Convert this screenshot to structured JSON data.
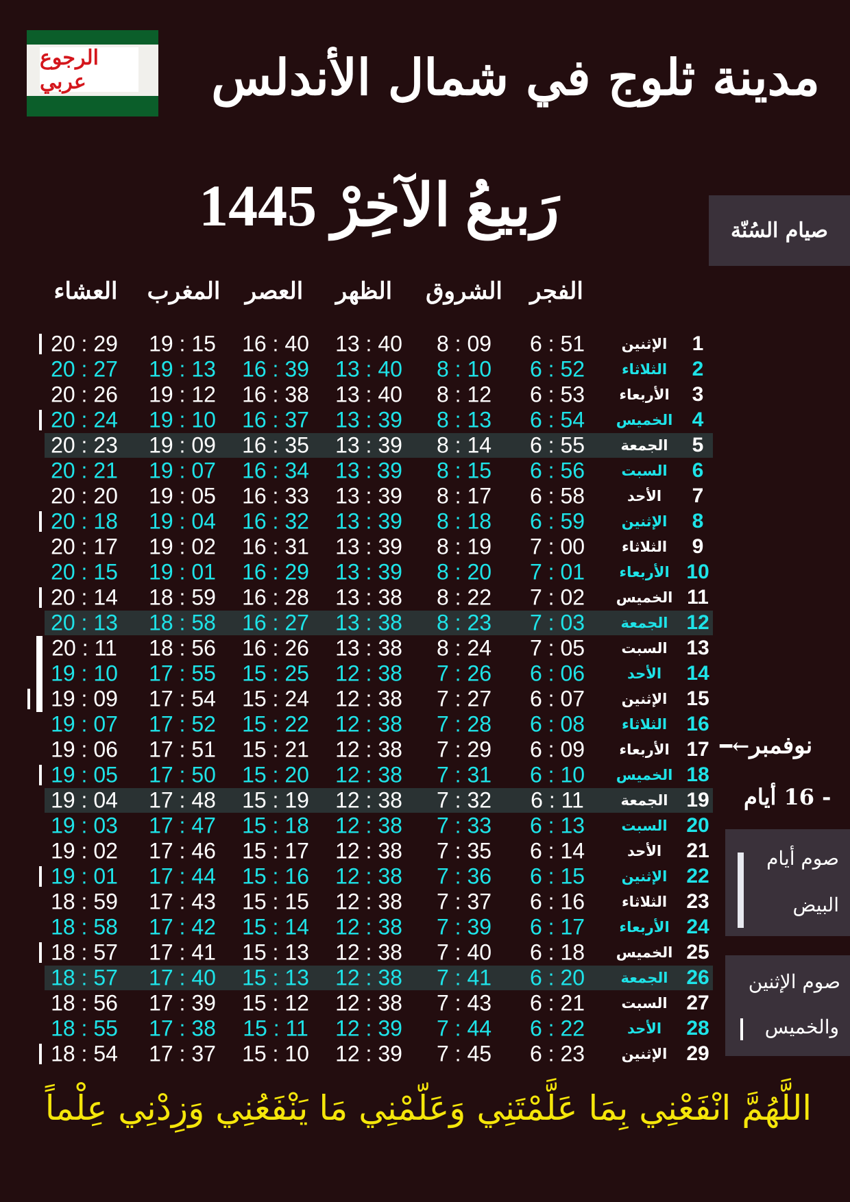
{
  "logo": {
    "text": "الرجوع عربي",
    "colors": {
      "green": "#0b5e2a",
      "red": "#d4161c"
    }
  },
  "city_title": "مدينة ثلوج في شمال الأندلس",
  "month_title": "رَبيعُ الآخِرْ 1445",
  "sunnah_fasting_label": "صيام السُنّة",
  "columns": [
    "الفجر",
    "الشروق",
    "الظهر",
    "العصر",
    "المغرب",
    "العشاء"
  ],
  "rows": [
    {
      "day": "1",
      "name": "الإثنين",
      "fajr": "6 : 51",
      "shuruq": "8 : 09",
      "dhuhr": "13 : 40",
      "asr": "16 : 40",
      "maghrib": "19 : 15",
      "isha": "20 : 29"
    },
    {
      "day": "2",
      "name": "الثلاثاء",
      "fajr": "6 : 52",
      "shuruq": "8 : 10",
      "dhuhr": "13 : 40",
      "asr": "16 : 39",
      "maghrib": "19 : 13",
      "isha": "20 : 27"
    },
    {
      "day": "3",
      "name": "الأربعاء",
      "fajr": "6 : 53",
      "shuruq": "8 : 12",
      "dhuhr": "13 : 40",
      "asr": "16 : 38",
      "maghrib": "19 : 12",
      "isha": "20 : 26"
    },
    {
      "day": "4",
      "name": "الخميس",
      "fajr": "6 : 54",
      "shuruq": "8 : 13",
      "dhuhr": "13 : 39",
      "asr": "16 : 37",
      "maghrib": "19 : 10",
      "isha": "20 : 24"
    },
    {
      "day": "5",
      "name": "الجمعة",
      "fajr": "6 : 55",
      "shuruq": "8 : 14",
      "dhuhr": "13 : 39",
      "asr": "16 : 35",
      "maghrib": "19 : 09",
      "isha": "20 : 23"
    },
    {
      "day": "6",
      "name": "السبت",
      "fajr": "6 : 56",
      "shuruq": "8 : 15",
      "dhuhr": "13 : 39",
      "asr": "16 : 34",
      "maghrib": "19 : 07",
      "isha": "20 : 21"
    },
    {
      "day": "7",
      "name": "الأحد",
      "fajr": "6 : 58",
      "shuruq": "8 : 17",
      "dhuhr": "13 : 39",
      "asr": "16 : 33",
      "maghrib": "19 : 05",
      "isha": "20 : 20"
    },
    {
      "day": "8",
      "name": "الإثنين",
      "fajr": "6 : 59",
      "shuruq": "8 : 18",
      "dhuhr": "13 : 39",
      "asr": "16 : 32",
      "maghrib": "19 : 04",
      "isha": "20 : 18"
    },
    {
      "day": "9",
      "name": "الثلاثاء",
      "fajr": "7 : 00",
      "shuruq": "8 : 19",
      "dhuhr": "13 : 39",
      "asr": "16 : 31",
      "maghrib": "19 : 02",
      "isha": "20 : 17"
    },
    {
      "day": "10",
      "name": "الأربعاء",
      "fajr": "7 : 01",
      "shuruq": "8 : 20",
      "dhuhr": "13 : 39",
      "asr": "16 : 29",
      "maghrib": "19 : 01",
      "isha": "20 : 15"
    },
    {
      "day": "11",
      "name": "الخميس",
      "fajr": "7 : 02",
      "shuruq": "8 : 22",
      "dhuhr": "13 : 38",
      "asr": "16 : 28",
      "maghrib": "18 : 59",
      "isha": "20 : 14"
    },
    {
      "day": "12",
      "name": "الجمعة",
      "fajr": "7 : 03",
      "shuruq": "8 : 23",
      "dhuhr": "13 : 38",
      "asr": "16 : 27",
      "maghrib": "18 : 58",
      "isha": "20 : 13"
    },
    {
      "day": "13",
      "name": "السبت",
      "fajr": "7 : 05",
      "shuruq": "8 : 24",
      "dhuhr": "13 : 38",
      "asr": "16 : 26",
      "maghrib": "18 : 56",
      "isha": "20 : 11"
    },
    {
      "day": "14",
      "name": "الأحد",
      "fajr": "6 : 06",
      "shuruq": "7 : 26",
      "dhuhr": "12 : 38",
      "asr": "15 : 25",
      "maghrib": "17 : 55",
      "isha": "19 : 10"
    },
    {
      "day": "15",
      "name": "الإثنين",
      "fajr": "6 : 07",
      "shuruq": "7 : 27",
      "dhuhr": "12 : 38",
      "asr": "15 : 24",
      "maghrib": "17 : 54",
      "isha": "19 : 09"
    },
    {
      "day": "16",
      "name": "الثلاثاء",
      "fajr": "6 : 08",
      "shuruq": "7 : 28",
      "dhuhr": "12 : 38",
      "asr": "15 : 22",
      "maghrib": "17 : 52",
      "isha": "19 : 07"
    },
    {
      "day": "17",
      "name": "الأربعاء",
      "fajr": "6 : 09",
      "shuruq": "7 : 29",
      "dhuhr": "12 : 38",
      "asr": "15 : 21",
      "maghrib": "17 : 51",
      "isha": "19 : 06"
    },
    {
      "day": "18",
      "name": "الخميس",
      "fajr": "6 : 10",
      "shuruq": "7 : 31",
      "dhuhr": "12 : 38",
      "asr": "15 : 20",
      "maghrib": "17 : 50",
      "isha": "19 : 05"
    },
    {
      "day": "19",
      "name": "الجمعة",
      "fajr": "6 : 11",
      "shuruq": "7 : 32",
      "dhuhr": "12 : 38",
      "asr": "15 : 19",
      "maghrib": "17 : 48",
      "isha": "19 : 04"
    },
    {
      "day": "20",
      "name": "السبت",
      "fajr": "6 : 13",
      "shuruq": "7 : 33",
      "dhuhr": "12 : 38",
      "asr": "15 : 18",
      "maghrib": "17 : 47",
      "isha": "19 : 03"
    },
    {
      "day": "21",
      "name": "الأحد",
      "fajr": "6 : 14",
      "shuruq": "7 : 35",
      "dhuhr": "12 : 38",
      "asr": "15 : 17",
      "maghrib": "17 : 46",
      "isha": "19 : 02"
    },
    {
      "day": "22",
      "name": "الإثنين",
      "fajr": "6 : 15",
      "shuruq": "7 : 36",
      "dhuhr": "12 : 38",
      "asr": "15 : 16",
      "maghrib": "17 : 44",
      "isha": "19 : 01"
    },
    {
      "day": "23",
      "name": "الثلاثاء",
      "fajr": "6 : 16",
      "shuruq": "7 : 37",
      "dhuhr": "12 : 38",
      "asr": "15 : 15",
      "maghrib": "17 : 43",
      "isha": "18 : 59"
    },
    {
      "day": "24",
      "name": "الأربعاء",
      "fajr": "6 : 17",
      "shuruq": "7 : 39",
      "dhuhr": "12 : 38",
      "asr": "15 : 14",
      "maghrib": "17 : 42",
      "isha": "18 : 58"
    },
    {
      "day": "25",
      "name": "الخميس",
      "fajr": "6 : 18",
      "shuruq": "7 : 40",
      "dhuhr": "12 : 38",
      "asr": "15 : 13",
      "maghrib": "17 : 41",
      "isha": "18 : 57"
    },
    {
      "day": "26",
      "name": "الجمعة",
      "fajr": "6 : 20",
      "shuruq": "7 : 41",
      "dhuhr": "12 : 38",
      "asr": "15 : 13",
      "maghrib": "17 : 40",
      "isha": "18 : 57"
    },
    {
      "day": "27",
      "name": "السبت",
      "fajr": "6 : 21",
      "shuruq": "7 : 43",
      "dhuhr": "12 : 38",
      "asr": "15 : 12",
      "maghrib": "17 : 39",
      "isha": "18 : 56"
    },
    {
      "day": "28",
      "name": "الأحد",
      "fajr": "6 : 22",
      "shuruq": "7 : 44",
      "dhuhr": "12 : 39",
      "asr": "15 : 11",
      "maghrib": "17 : 38",
      "isha": "18 : 55"
    },
    {
      "day": "29",
      "name": "الإثنين",
      "fajr": "6 : 23",
      "shuruq": "7 : 45",
      "dhuhr": "12 : 39",
      "asr": "15 : 10",
      "maghrib": "17 : 37",
      "isha": "18 : 54"
    }
  ],
  "highlighted_days": [
    5,
    12,
    19,
    26
  ],
  "mon_thu_marked_days": [
    1,
    4,
    8,
    11,
    15,
    18,
    22,
    25,
    29
  ],
  "white_days": [
    13,
    14,
    15
  ],
  "november_label": "نوفمبر",
  "november_arrow_icon": "left-arrow",
  "days_offset_label": "- 16 أيام",
  "white_days_box": {
    "line1": "صوم أيام",
    "line2": "البيض"
  },
  "mon_thu_box": {
    "line1": "صوم الإثنين",
    "line2": "والخميس"
  },
  "dua": "اللَّهُمَّ انْفَعْنِي بِمَا عَلَّمْتَنِي وَعَلّمْنِي مَا يَنْفَعُنِي وَزِدْنِي عِلْماً",
  "colors": {
    "background": "#230d0f",
    "even_rows": "#1ee3e8",
    "highlight_row": "#2a3233",
    "dua": "#f5e60a",
    "side_box": "#3a313a"
  }
}
